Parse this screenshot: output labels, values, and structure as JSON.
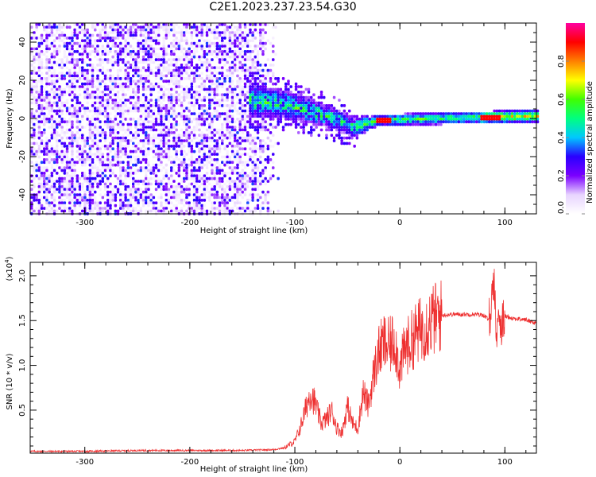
{
  "page": {
    "title": "C2E1.2023.237.23.54.G30"
  },
  "chart_data": [
    {
      "type": "heatmap",
      "xlabel": "Height of straight line (km)",
      "ylabel": "Frequency (Hz)",
      "xlim": [
        -352,
        130
      ],
      "ylim": [
        -50,
        50
      ],
      "x_ticks": [
        -300,
        -200,
        -100,
        0,
        100
      ],
      "y_ticks": [
        -40,
        -20,
        0,
        20,
        40
      ],
      "colorbar": {
        "label": "Normalized spectral amplitude",
        "range": [
          0,
          1
        ],
        "ticks": [
          "0.0",
          "0.2",
          "0.4",
          "0.6",
          "0.8"
        ],
        "colormap": [
          "#ffffff",
          "#e8d4ff",
          "#7b00ff",
          "#2a00ff",
          "#00c8ff",
          "#00ff80",
          "#40ff00",
          "#ffff00",
          "#ff8000",
          "#ff0000",
          "#ff00a0"
        ]
      },
      "features": {
        "diffuse_region_x": [
          -352,
          -115
        ],
        "diffuse_amplitude": 0.18,
        "band_x": [
          -145,
          130
        ],
        "band_center_freq": [
          [
            -145,
            10
          ],
          [
            -110,
            8
          ],
          [
            -70,
            2
          ],
          [
            -45,
            -4
          ],
          [
            -20,
            0
          ],
          [
            0,
            0
          ],
          [
            50,
            1
          ],
          [
            130,
            2
          ]
        ],
        "peak_amplitude": 0.9
      }
    },
    {
      "type": "line",
      "xlabel": "Height of straight line (km)",
      "ylabel": "SNR (10 * v/v)",
      "y_multiplier": "(x10",
      "y_exponent": "4",
      "y_multiplier_close": ")",
      "xlim": [
        -352,
        130
      ],
      "ylim": [
        0.02,
        2.15
      ],
      "x_ticks": [
        -300,
        -200,
        -100,
        0,
        100
      ],
      "y_ticks": [
        0.5,
        1.0,
        1.5,
        2.0
      ],
      "color": "#ee3030",
      "series": [
        {
          "x": [
            -352,
            -300,
            -250,
            -200,
            -150,
            -120,
            -110,
            -100,
            -95,
            -90,
            -85,
            -80,
            -75,
            -70,
            -65,
            -60,
            -55,
            -50,
            -45,
            -40,
            -35,
            -30,
            -25,
            -20,
            -15,
            -10,
            -5,
            0,
            5,
            10,
            15,
            20,
            25,
            30,
            35,
            40,
            50,
            60,
            70,
            80,
            85,
            90,
            92,
            94,
            96,
            100,
            110,
            120,
            130
          ],
          "y": [
            0.04,
            0.04,
            0.05,
            0.05,
            0.05,
            0.06,
            0.08,
            0.15,
            0.3,
            0.5,
            0.7,
            0.55,
            0.35,
            0.4,
            0.5,
            0.3,
            0.25,
            0.55,
            0.35,
            0.3,
            0.7,
            0.55,
            0.9,
            1.15,
            1.25,
            1.2,
            1.3,
            0.95,
            1.2,
            1.25,
            1.35,
            1.4,
            1.45,
            1.5,
            1.53,
            1.56,
            1.57,
            1.57,
            1.57,
            1.56,
            1.5,
            2.0,
            1.15,
            1.7,
            1.45,
            1.55,
            1.52,
            1.51,
            1.47
          ]
        }
      ]
    }
  ]
}
